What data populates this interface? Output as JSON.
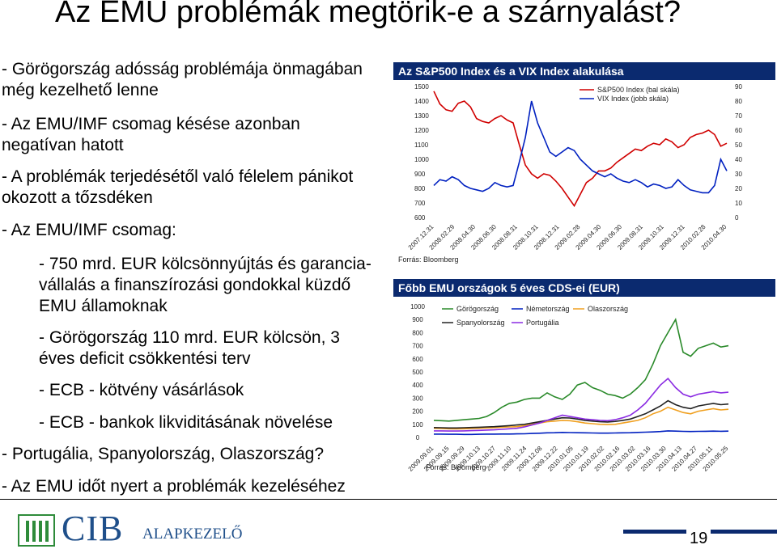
{
  "slide": {
    "title": "Az EMU problémák megtörik-e a szárnyalást?",
    "bullets": [
      "- Görögország adósság problémája önmagában",
      "még kezelhető lenne",
      "- Az EMU/IMF csomag késése azonban",
      "negatívan hatott",
      "- A problémák terjedésétől való félelem pánikot",
      "okozott a tőzsdéken",
      "- Az EMU/IMF csomag:",
      "- 750 mrd. EUR kölcsönnyújtás és garancia-",
      "vállalás a finanszírozási gondokkal küzdő",
      "EMU államoknak",
      "- Görögország 110 mrd. EUR kölcsön, 3",
      "éves deficit csökkentési terv",
      "- ECB - kötvény vásárlások",
      "- ECB - bankok likviditásának növelése",
      "- Portugália, Spanyolország, Olaszország?",
      "- Az EMU időt nyert a problémák kezeléséhez"
    ],
    "page_number": "19",
    "logo_text": "CIB",
    "logo_subtext": "ALAPKEZELŐ"
  },
  "chart_data": [
    {
      "type": "line",
      "title": "Az S&P500 Index és a VIX Index alakulása",
      "x_tick_labels": [
        "2007.12.31",
        "2008.02.29",
        "2008.04.30",
        "2008.06.30",
        "2008.08.31",
        "2008.10.31",
        "2008.12.31",
        "2009.02.28",
        "2009.04.30",
        "2009.06.30",
        "2009.08.31",
        "2009.10.31",
        "2009.12.31",
        "2010.02.28",
        "2010.04.30"
      ],
      "y_left_ticks": [
        "1500",
        "1400",
        "1300",
        "1200",
        "1100",
        "1000",
        "900",
        "800",
        "700",
        "600"
      ],
      "y_right_ticks": [
        "90",
        "80",
        "70",
        "60",
        "50",
        "40",
        "30",
        "20",
        "10",
        "0"
      ],
      "ylim_left": [
        600,
        1500
      ],
      "ylim_right": [
        0,
        90
      ],
      "source": "Forrás: Bloomberg",
      "series": [
        {
          "name": "S&P500 Index (bal skála)",
          "axis": "left",
          "color": "#d00000",
          "values": [
            1468,
            1380,
            1340,
            1330,
            1385,
            1400,
            1360,
            1280,
            1260,
            1250,
            1280,
            1300,
            1270,
            1250,
            1100,
            960,
            900,
            870,
            900,
            890,
            850,
            800,
            740,
            680,
            760,
            840,
            870,
            920,
            920,
            940,
            980,
            1010,
            1040,
            1070,
            1060,
            1090,
            1110,
            1100,
            1140,
            1120,
            1080,
            1100,
            1150,
            1170,
            1180,
            1200,
            1170,
            1090,
            1110
          ]
        },
        {
          "name": "VIX Index (jobb skála)",
          "axis": "right",
          "color": "#0020c0",
          "values": [
            22,
            26,
            25,
            28,
            26,
            22,
            20,
            19,
            18,
            20,
            24,
            22,
            21,
            22,
            38,
            55,
            80,
            65,
            55,
            45,
            42,
            45,
            48,
            46,
            40,
            36,
            32,
            30,
            28,
            30,
            27,
            25,
            24,
            26,
            24,
            21,
            23,
            22,
            20,
            21,
            26,
            22,
            19,
            18,
            17,
            17,
            22,
            40,
            32
          ]
        }
      ]
    },
    {
      "type": "line",
      "title": "Főbb EMU országok 5 éves CDS-ei (EUR)",
      "x_tick_labels": [
        "2009.09.01",
        "2009.09.15",
        "2009.09.29",
        "2009.10.13",
        "2009.10.27",
        "2009.11.10",
        "2009.11.24",
        "2009.12.08",
        "2009.12.22",
        "2010.01.05",
        "2010.01.19",
        "2010.02.02",
        "2010.02.16",
        "2010.03.02",
        "2010.03.16",
        "2010.03.30",
        "2010.04.13",
        "2010.04.27",
        "2010.05.11",
        "2010.05.25"
      ],
      "y_ticks": [
        "1000",
        "900",
        "800",
        "700",
        "600",
        "500",
        "400",
        "300",
        "200",
        "100",
        "0"
      ],
      "ylim": [
        0,
        1000
      ],
      "source": "Forrás: Bloomberg",
      "series": [
        {
          "name": "Görögország",
          "color": "#2a8a2a",
          "values": [
            130,
            128,
            125,
            130,
            135,
            140,
            145,
            160,
            190,
            230,
            260,
            270,
            290,
            300,
            300,
            340,
            310,
            290,
            330,
            400,
            420,
            380,
            360,
            330,
            320,
            300,
            330,
            380,
            440,
            560,
            700,
            800,
            900,
            650,
            620,
            680,
            700,
            720,
            690,
            700
          ]
        },
        {
          "name": "Németország",
          "color": "#0020c0",
          "values": [
            25,
            25,
            24,
            24,
            23,
            23,
            24,
            25,
            25,
            26,
            26,
            27,
            28,
            30,
            32,
            35,
            36,
            38,
            37,
            36,
            35,
            34,
            33,
            33,
            34,
            35,
            36,
            38,
            40,
            42,
            45,
            50,
            48,
            46,
            45,
            46,
            47,
            48,
            47,
            48
          ]
        },
        {
          "name": "Olaszország",
          "color": "#f0a020",
          "values": [
            70,
            68,
            66,
            65,
            66,
            68,
            70,
            72,
            74,
            78,
            80,
            82,
            90,
            100,
            110,
            120,
            125,
            130,
            128,
            120,
            110,
            105,
            100,
            98,
            100,
            110,
            120,
            130,
            150,
            180,
            200,
            230,
            210,
            190,
            180,
            200,
            210,
            220,
            210,
            215
          ]
        },
        {
          "name": "Spanyolország",
          "color": "#222222",
          "values": [
            75,
            74,
            72,
            72,
            74,
            76,
            78,
            80,
            82,
            86,
            90,
            95,
            100,
            110,
            120,
            130,
            140,
            150,
            148,
            140,
            130,
            125,
            120,
            118,
            122,
            130,
            140,
            160,
            180,
            210,
            240,
            280,
            250,
            230,
            220,
            240,
            250,
            260,
            250,
            255
          ]
        },
        {
          "name": "Portugália",
          "color": "#8a2be2",
          "values": [
            50,
            50,
            49,
            49,
            50,
            52,
            54,
            56,
            58,
            62,
            66,
            70,
            80,
            95,
            110,
            130,
            150,
            170,
            160,
            150,
            140,
            135,
            130,
            128,
            135,
            150,
            170,
            210,
            260,
            330,
            400,
            450,
            380,
            330,
            310,
            330,
            340,
            350,
            340,
            345
          ]
        }
      ]
    }
  ]
}
